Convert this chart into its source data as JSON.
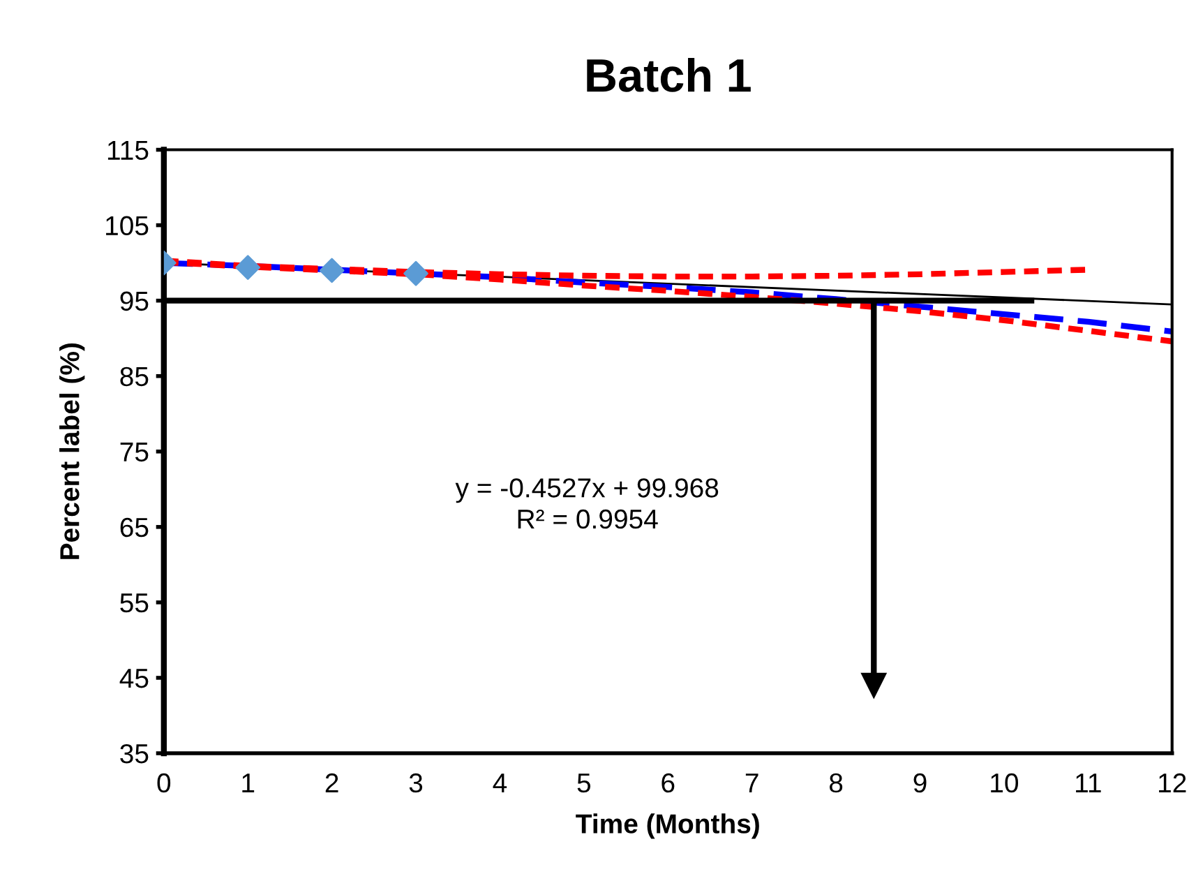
{
  "chart_data": {
    "type": "line",
    "title": "Batch 1",
    "xlabel": "Time (Months)",
    "ylabel": "Percent label (%)",
    "xlim": [
      0,
      12
    ],
    "xticks": [
      0,
      1,
      2,
      3,
      4,
      5,
      6,
      7,
      8,
      9,
      10,
      11,
      12
    ],
    "ylim": [
      35,
      115
    ],
    "yticks": [
      35,
      45,
      55,
      65,
      75,
      85,
      95,
      105,
      115
    ],
    "grid": false,
    "legend": false,
    "series": [
      {
        "type": "scatter",
        "marker": "diamond",
        "color": "#5b9bd5",
        "x": [
          0,
          1,
          2,
          3
        ],
        "values": [
          100.0,
          99.4,
          99.0,
          98.6
        ]
      },
      {
        "line_style": "solid",
        "color": "#000000",
        "x": [
          0,
          12
        ],
        "values": [
          100.0,
          94.5
        ]
      },
      {
        "line_style": "dashed",
        "color": "#0000ff",
        "x": [
          0,
          1,
          2,
          3,
          4,
          5,
          6,
          7,
          8,
          9,
          10,
          11,
          12
        ],
        "values": [
          100.0,
          99.6,
          99.1,
          98.6,
          98.1,
          97.4,
          96.8,
          96.1,
          95.2,
          94.2,
          93.2,
          92.2,
          90.9
        ]
      },
      {
        "line_style": "dotted",
        "color": "#ff0000",
        "x": [
          0,
          1,
          2,
          3,
          4,
          5,
          6,
          7,
          8,
          9,
          10,
          11,
          12
        ],
        "values": [
          100.1,
          99.5,
          99.0,
          98.5,
          97.8,
          97.0,
          96.3,
          95.5,
          94.6,
          93.6,
          92.4,
          91.0,
          89.6
        ]
      },
      {
        "line_style": "dotted",
        "color": "#ff0000",
        "x": [
          0,
          1,
          2,
          3,
          4,
          5,
          6,
          7,
          8,
          9,
          10,
          11
        ],
        "values": [
          100.3,
          99.6,
          99.2,
          98.8,
          98.5,
          98.3,
          98.2,
          98.2,
          98.3,
          98.5,
          98.8,
          99.1
        ]
      },
      {
        "line_style": "solid",
        "color": "#000000",
        "x": [
          0,
          10.36
        ],
        "values": [
          95,
          95
        ]
      },
      {
        "line_style": "solid",
        "marker": "triangle",
        "color": "#000000",
        "x": [
          8.45,
          8.45
        ],
        "values": [
          95,
          44
        ]
      }
    ],
    "annotations": [
      "y = -0.4527x + 99.968\nR² = 0.9954"
    ]
  }
}
